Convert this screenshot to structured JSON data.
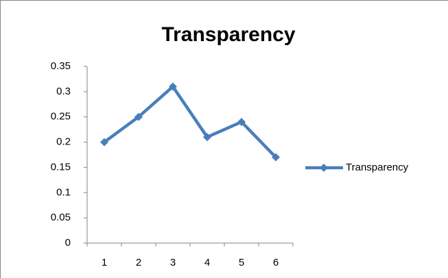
{
  "chart_data": {
    "type": "line",
    "title": "Transparency",
    "categories": [
      "1",
      "2",
      "3",
      "4",
      "5",
      "6"
    ],
    "series": [
      {
        "name": "Transparency",
        "color": "#4a7ebb",
        "values": [
          0.2,
          0.25,
          0.31,
          0.21,
          0.24,
          0.17
        ]
      }
    ],
    "ylim": [
      0,
      0.35
    ],
    "yticks": [
      0,
      0.05,
      0.1,
      0.15,
      0.2,
      0.25,
      0.3,
      0.35
    ],
    "grid": false,
    "legend": "right"
  }
}
